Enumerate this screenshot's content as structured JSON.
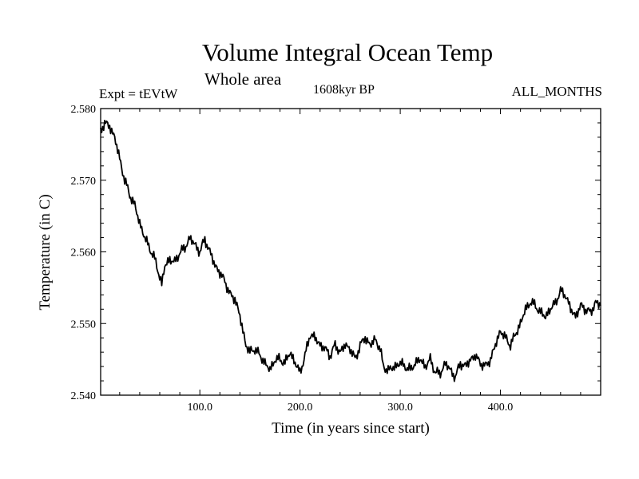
{
  "chart_data": {
    "type": "line",
    "title": "Volume Integral Ocean Temp",
    "subtitle": "Whole area",
    "left_label": "Expt = tEVtW",
    "center_label": "1608kyr BP",
    "right_label": "ALL_MONTHS",
    "xlabel": "Time (in years since start)",
    "ylabel": "Temperature (in C)",
    "xlim": [
      1,
      500
    ],
    "ylim": [
      2.54,
      2.58
    ],
    "x_ticks": [
      100,
      200,
      300,
      400
    ],
    "x_tick_labels": [
      "100.0",
      "200.0",
      "300.0",
      "400.0"
    ],
    "y_ticks": [
      2.54,
      2.55,
      2.56,
      2.57,
      2.58
    ],
    "y_tick_labels": [
      "2.540",
      "2.550",
      "2.560",
      "2.570",
      "2.580"
    ],
    "grid": false,
    "series": [
      {
        "name": "Volume Integral Ocean Temp",
        "color": "#000000",
        "x": [
          1,
          5,
          10,
          15,
          20,
          25,
          30,
          35,
          40,
          45,
          50,
          55,
          58,
          62,
          65,
          70,
          75,
          80,
          85,
          90,
          95,
          100,
          105,
          110,
          115,
          120,
          125,
          130,
          135,
          140,
          143,
          146,
          150,
          155,
          160,
          165,
          170,
          175,
          180,
          185,
          190,
          195,
          200,
          205,
          210,
          215,
          220,
          225,
          230,
          235,
          240,
          245,
          250,
          255,
          260,
          265,
          270,
          275,
          280,
          283,
          288,
          295,
          300,
          305,
          310,
          315,
          320,
          325,
          330,
          335,
          340,
          345,
          350,
          355,
          360,
          365,
          370,
          375,
          380,
          385,
          390,
          395,
          400,
          405,
          410,
          415,
          420,
          425,
          430,
          435,
          440,
          445,
          450,
          455,
          460,
          465,
          470,
          475,
          480,
          485,
          490,
          495,
          500
        ],
        "values": [
          2.577,
          2.578,
          2.5775,
          2.576,
          2.573,
          2.57,
          2.568,
          2.5665,
          2.564,
          2.562,
          2.5605,
          2.559,
          2.5575,
          2.5555,
          2.558,
          2.559,
          2.5585,
          2.56,
          2.5605,
          2.562,
          2.561,
          2.56,
          2.5618,
          2.56,
          2.5582,
          2.557,
          2.556,
          2.554,
          2.5535,
          2.551,
          2.549,
          2.547,
          2.546,
          2.5465,
          2.5455,
          2.5445,
          2.5435,
          2.545,
          2.545,
          2.5445,
          2.546,
          2.5445,
          2.5432,
          2.5455,
          2.5485,
          2.548,
          2.547,
          2.5465,
          2.5455,
          2.547,
          2.546,
          2.547,
          2.5465,
          2.545,
          2.547,
          2.548,
          2.547,
          2.5478,
          2.5465,
          2.544,
          2.5435,
          2.544,
          2.5445,
          2.544,
          2.5435,
          2.5445,
          2.545,
          2.544,
          2.545,
          2.5432,
          2.543,
          2.5445,
          2.5435,
          2.5425,
          2.5445,
          2.544,
          2.545,
          2.5455,
          2.5445,
          2.544,
          2.545,
          2.547,
          2.549,
          2.548,
          2.547,
          2.5485,
          2.55,
          2.552,
          2.553,
          2.5525,
          2.5515,
          2.551,
          2.552,
          2.553,
          2.5545,
          2.554,
          2.552,
          2.551,
          2.5525,
          2.552,
          2.5515,
          2.553,
          2.5525
        ]
      }
    ]
  }
}
